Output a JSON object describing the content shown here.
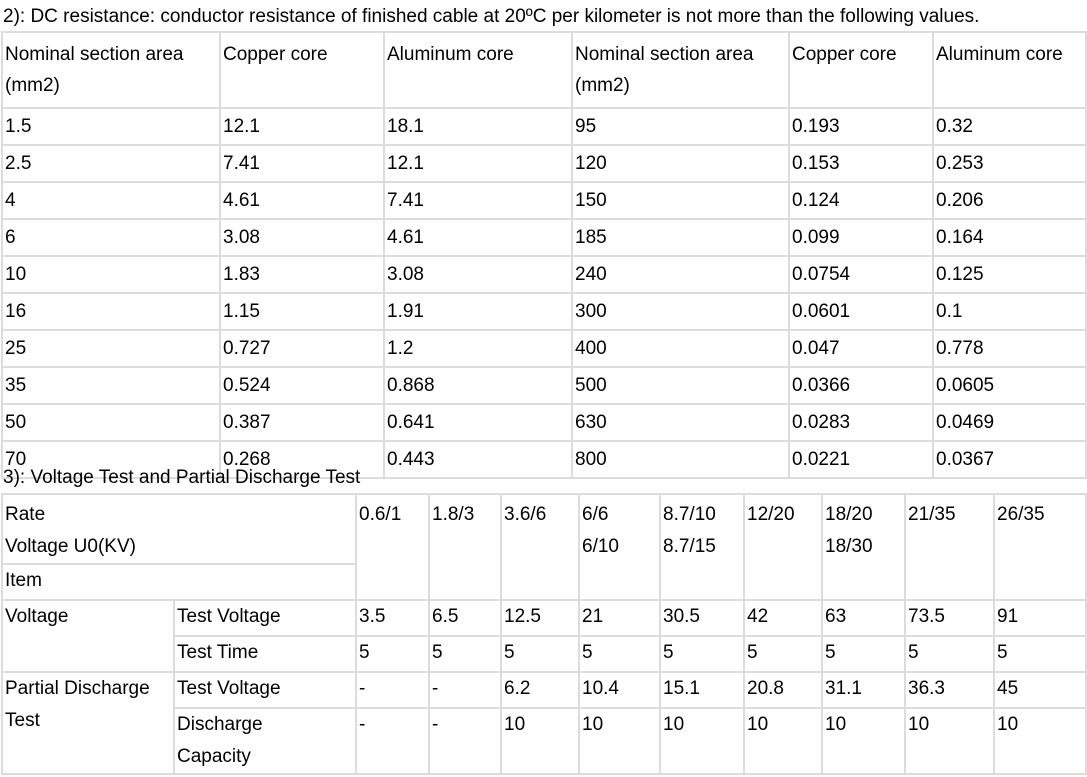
{
  "section2": {
    "heading": "2): DC resistance: conductor resistance of finished cable at 20ºC per kilometer is not more than the following values.",
    "headers": {
      "nominal_line1": "Nominal section area",
      "nominal_line2": "(mm2)",
      "copper": "Copper core",
      "aluminum": "Aluminum core",
      "nominal_b_line1": "Nominal section area",
      "nominal_b_line2": "(mm2)",
      "copper_b": "Copper core",
      "aluminum_b": "Aluminum core"
    },
    "rows": [
      [
        "1.5",
        "12.1",
        "18.1",
        "95",
        "0.193",
        "0.32"
      ],
      [
        "2.5",
        "7.41",
        "12.1",
        "120",
        "0.153",
        "0.253"
      ],
      [
        "4",
        "4.61",
        "7.41",
        "150",
        "0.124",
        "0.206"
      ],
      [
        "6",
        "3.08",
        "4.61",
        "185",
        "0.099",
        "0.164"
      ],
      [
        "10",
        "1.83",
        "3.08",
        "240",
        "0.0754",
        "0.125"
      ],
      [
        "16",
        "1.15",
        "1.91",
        "300",
        "0.0601",
        "0.1"
      ],
      [
        "25",
        "0.727",
        "1.2",
        "400",
        "0.047",
        "0.778"
      ],
      [
        "35",
        "0.524",
        "0.868",
        "500",
        "0.0366",
        "0.0605"
      ],
      [
        "50",
        "0.387",
        "0.641",
        "630",
        "0.0283",
        "0.0469"
      ],
      [
        "70",
        "0.268",
        "0.443",
        "800",
        "0.0221",
        "0.0367"
      ]
    ]
  },
  "section3": {
    "heading": "3): Voltage Test and Partial Discharge Test",
    "header": {
      "rate_line1": "Rate",
      "rate_line2": "Voltage U0(KV)",
      "item": "Item",
      "voltages": [
        [
          "0.6/1",
          ""
        ],
        [
          "1.8/3",
          ""
        ],
        [
          "3.6/6",
          ""
        ],
        [
          "6/6",
          "6/10"
        ],
        [
          "8.7/10",
          "8.7/15"
        ],
        [
          "12/20",
          ""
        ],
        [
          "18/20",
          "18/30"
        ],
        [
          "21/35",
          ""
        ],
        [
          "26/35",
          ""
        ]
      ]
    },
    "voltage_group": {
      "label": "Voltage",
      "test_voltage_label": "Test Voltage",
      "test_voltage_values": [
        "3.5",
        "6.5",
        "12.5",
        "21",
        "30.5",
        "42",
        "63",
        "73.5",
        "91"
      ],
      "test_time_label": "Test Time",
      "test_time_values": [
        "5",
        "5",
        "5",
        "5",
        "5",
        "5",
        "5",
        "5",
        "5"
      ]
    },
    "pd_group": {
      "label_line1": "Partial Discharge",
      "label_line2": "Test",
      "test_voltage_label": "Test Voltage",
      "test_voltage_values": [
        "-",
        "-",
        "6.2",
        "10.4",
        "15.1",
        "20.8",
        "31.1",
        "36.3",
        "45"
      ],
      "capacity_label_line1": "Discharge",
      "capacity_label_line2": "Capacity",
      "capacity_values": [
        "-",
        "-",
        "10",
        "10",
        "10",
        "10",
        "10",
        "10",
        "10"
      ]
    }
  }
}
